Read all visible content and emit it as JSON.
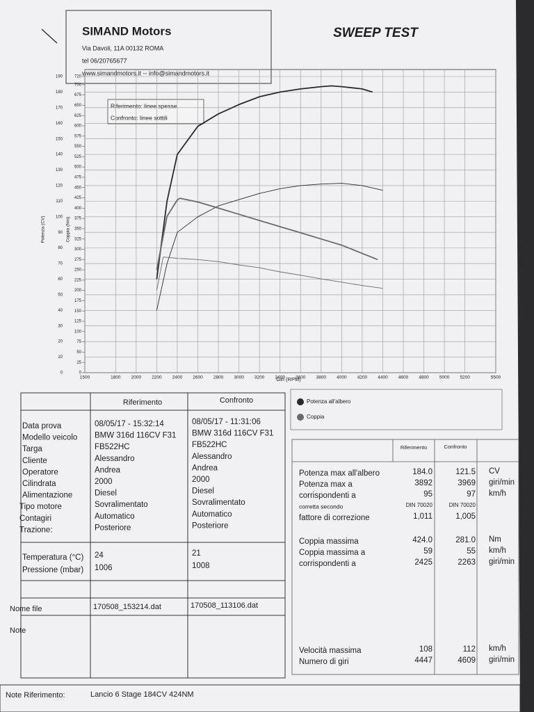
{
  "header": {
    "company": "SIMAND Motors",
    "address": "Via Davoli, 11A 00132 ROMA",
    "phone": "tel 06/20765677",
    "web": "www.simandmotors.it -- info@simandmotors.it",
    "title": "SWEEP TEST"
  },
  "chart_data": {
    "type": "line",
    "legend_box": [
      "Riferimento: linee spesse",
      "Confronto: linee sottili"
    ],
    "x_label": "Giri (RPM)",
    "y_label": "Potenza (CV)",
    "y2_label": "Coppia (Nm)",
    "xlim": [
      1500,
      5500
    ],
    "xticks": [
      1500,
      1800,
      2000,
      2200,
      2400,
      2600,
      2800,
      3000,
      3200,
      3400,
      3600,
      3800,
      4000,
      4200,
      4400,
      4600,
      4800,
      5000,
      5200,
      5500
    ],
    "ylim": [
      0,
      190
    ],
    "yticks": [
      0,
      10,
      20,
      30,
      40,
      50,
      60,
      70,
      80,
      90,
      100,
      110,
      120,
      130,
      140,
      150,
      160,
      170,
      180,
      190
    ],
    "y2lim": [
      0,
      720
    ],
    "y2ticks": [
      0,
      25,
      50,
      75,
      100,
      125,
      150,
      175,
      200,
      225,
      250,
      275,
      300,
      325,
      350,
      375,
      400,
      425,
      450,
      475,
      500,
      525,
      550,
      575,
      600,
      625,
      650,
      675,
      700,
      720
    ],
    "grid": true,
    "series": [
      {
        "name": "Potenza all'albero",
        "color": "#2a2a2a",
        "axis": "y",
        "runs": [
          {
            "width": 2,
            "x": [
              2200,
              2300,
              2400,
              2600,
              2800,
              3000,
              3200,
              3400,
              3600,
              3800,
              3900,
              4000,
              4200,
              4300
            ],
            "values": [
              60,
              110,
              140,
              158,
              166,
              172,
              177,
              180,
              182,
              183.5,
              184,
              183.5,
              182,
              180
            ]
          },
          {
            "width": 1,
            "x": [
              2200,
              2300,
              2400,
              2600,
              2800,
              3000,
              3200,
              3400,
              3600,
              3800,
              4000,
              4200,
              4400
            ],
            "values": [
              40,
              70,
              90,
              100,
              107,
              111,
              115,
              118,
              120,
              121,
              121.5,
              120,
              117
            ]
          }
        ]
      },
      {
        "name": "Coppia",
        "color": "#6a6a6a",
        "axis": "y2",
        "runs": [
          {
            "width": 2,
            "x": [
              2200,
              2300,
              2400,
              2425,
              2600,
              2800,
              3000,
              3200,
              3400,
              3600,
              3800,
              4000,
              4200,
              4350
            ],
            "values": [
              250,
              380,
              420,
              424,
              415,
              400,
              385,
              370,
              355,
              340,
              325,
              310,
              290,
              275
            ]
          },
          {
            "width": 1,
            "x": [
              2200,
              2263,
              2400,
              2600,
              2800,
              3000,
              3200,
              3400,
              3600,
              3800,
              4000,
              4200,
              4400
            ],
            "values": [
              200,
              281,
              278,
              275,
              270,
              262,
              255,
              245,
              237,
              228,
              220,
              212,
              205
            ]
          }
        ]
      }
    ]
  },
  "vehicle": {
    "columns": [
      "Riferimento",
      "Confronto"
    ],
    "rows": [
      [
        "Data prova",
        "08/05/17 - 15:32:14",
        "08/05/17 - 11:31:06"
      ],
      [
        "Modello veicolo",
        "BMW 316d 116CV  F31",
        "BMW 316d 116CV  F31"
      ],
      [
        "Targa",
        "FB522HC",
        "FB522HC"
      ],
      [
        "Cliente",
        "Alessandro",
        "Alessandro"
      ],
      [
        "Operatore",
        "Andrea",
        "Andrea"
      ],
      [
        "Cilindrata",
        "2000",
        "2000"
      ],
      [
        "Alimentazione",
        "Diesel",
        "Diesel"
      ],
      [
        "Tipo motore",
        "Sovralimentato",
        "Sovralimentato"
      ],
      [
        "Contagiri",
        "Automatico",
        "Automatico"
      ],
      [
        "Trazione:",
        "Posteriore",
        "Posteriore"
      ]
    ],
    "conditions": [
      [
        "Temperatura (°C)",
        "24",
        "21"
      ],
      [
        "Pressione (mbar)",
        "1006",
        "1008"
      ]
    ],
    "file": [
      "Nome file",
      "170508_153214.dat",
      "170508_113106.dat"
    ],
    "note": "Note"
  },
  "results": {
    "columns": [
      "Riferimento",
      "Confronto"
    ],
    "groups": [
      [
        [
          "Potenza max all'albero",
          "184.0",
          "121.5",
          "CV"
        ],
        [
          "Potenza max a",
          "3892",
          "3969",
          "giri/min"
        ],
        [
          "corrispondenti a",
          "95",
          "97",
          "km/h"
        ],
        [
          "corretta secondo",
          "DIN 70020",
          "DIN 70020"
        ],
        [
          "fattore di correzione",
          "1,011",
          "1,005"
        ]
      ],
      [
        [
          "Coppia massima",
          "424.0",
          "281.0",
          "Nm"
        ],
        [
          "Coppia massima a",
          "59",
          "55",
          "km/h"
        ],
        [
          "corrispondenti a",
          "2425",
          "2263",
          "giri/min"
        ]
      ],
      [
        [
          "Velocità massima",
          "108",
          "112",
          "km/h"
        ],
        [
          "Numero di giri",
          "4447",
          "4609",
          "giri/min"
        ]
      ]
    ]
  },
  "note_reference": {
    "label": "Note Riferimento:",
    "text": "Lancio 6 Stage 184CV 424NM"
  }
}
